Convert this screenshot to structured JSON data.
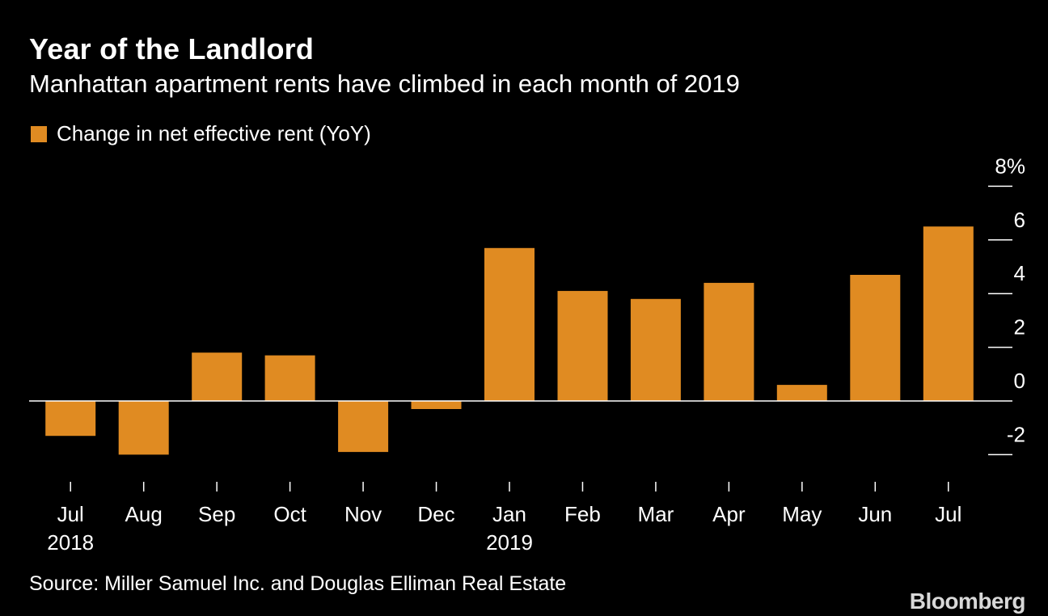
{
  "title": "Year of the Landlord",
  "subtitle": "Manhattan apartment rents have climbed in each month of 2019",
  "legend": {
    "label": "Change in net effective rent (YoY)"
  },
  "source": "Source: Miller Samuel Inc. and Douglas Elliman Real Estate",
  "brand": "Bloomberg",
  "colors": {
    "bar": "#E08B22",
    "background": "#000000",
    "text": "#FFFFFF",
    "zero_line": "#FFFFFF",
    "brand": "#D8D8D8"
  },
  "chart_data": {
    "type": "bar",
    "categories": [
      "Jul",
      "Aug",
      "Sep",
      "Oct",
      "Nov",
      "Dec",
      "Jan",
      "Feb",
      "Mar",
      "Apr",
      "May",
      "Jun",
      "Jul"
    ],
    "year_labels": [
      "2018",
      "",
      "",
      "",
      "",
      "",
      "2019",
      "",
      "",
      "",
      "",
      "",
      ""
    ],
    "values": [
      -1.3,
      -2.0,
      1.8,
      1.7,
      -1.9,
      -0.3,
      5.7,
      4.1,
      3.8,
      4.4,
      0.6,
      4.7,
      6.5
    ],
    "series": [
      {
        "name": "Change in net effective rent (YoY)",
        "values": [
          -1.3,
          -2.0,
          1.8,
          1.7,
          -1.9,
          -0.3,
          5.7,
          4.1,
          3.8,
          4.4,
          0.6,
          4.7,
          6.5
        ]
      }
    ],
    "y_ticks": [
      -2,
      0,
      2,
      4,
      6,
      8
    ],
    "y_tick_labels": [
      "-2",
      "0",
      "2",
      "4",
      "6",
      "8%"
    ],
    "ylim": [
      -3,
      8
    ],
    "y_axis_side": "right",
    "legend_position": "top-left",
    "grid": false
  }
}
